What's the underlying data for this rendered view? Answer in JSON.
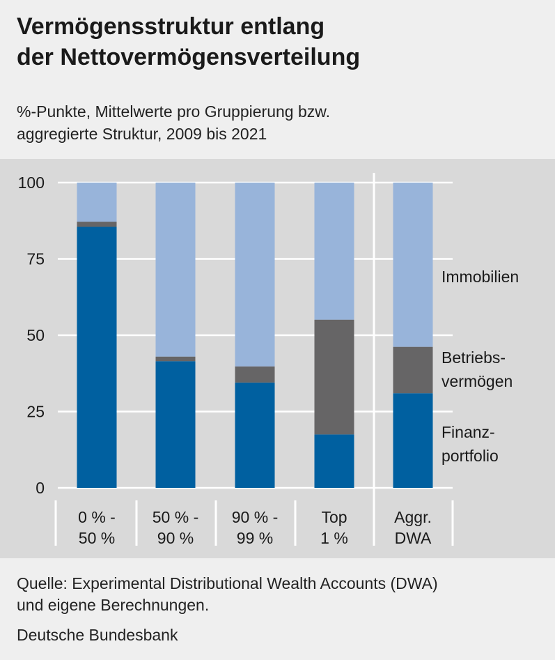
{
  "header": {
    "title_line1": "Vermögensstruktur entlang",
    "title_line2": "der Nettovermögensverteilung",
    "subtitle_line1": "%-Punkte, Mittelwerte pro Gruppierung bzw.",
    "subtitle_line2": "aggregierte Struktur, 2009 bis 2021"
  },
  "footer": {
    "source_line1": "Quelle: Experimental Distributional Wealth Accounts (DWA)",
    "source_line2": "und eigene Berechnungen.",
    "organization": "Deutsche Bundesbank"
  },
  "colors": {
    "finanzportfolio": "#0060a0",
    "betriebsvermoegen": "#666566",
    "immobilien": "#98b4da",
    "plot_background": "#d9d9d9",
    "page_background": "#efefef",
    "gridline": "#ffffff"
  },
  "chart_data": {
    "type": "bar",
    "stacked": true,
    "ylim": [
      0,
      100
    ],
    "yticks": [
      "0",
      "25",
      "50",
      "75",
      "100"
    ],
    "grid": true,
    "legend_placement": "right",
    "categories": [
      [
        "0 % -",
        "50 %"
      ],
      [
        "50 % -",
        "90 %"
      ],
      [
        "90 % -",
        "99 %"
      ],
      [
        "Top",
        "1 %"
      ],
      [
        "Aggr.",
        "DWA"
      ]
    ],
    "series": [
      {
        "name": "Finanzportfolio",
        "legend_lines": [
          "Finanz-",
          "portfolio"
        ],
        "color": "#0060a0",
        "values": [
          85.5,
          41.5,
          34.5,
          17.5,
          31.0
        ]
      },
      {
        "name": "Betriebsvermögen",
        "legend_lines": [
          "Betriebs-",
          "vermögen"
        ],
        "color": "#666566",
        "values": [
          1.7,
          1.5,
          5.3,
          37.6,
          15.2
        ]
      },
      {
        "name": "Immobilien",
        "legend_lines": [
          "Immobilien"
        ],
        "color": "#98b4da",
        "values": [
          12.8,
          57.0,
          60.2,
          44.9,
          53.8
        ]
      }
    ]
  }
}
